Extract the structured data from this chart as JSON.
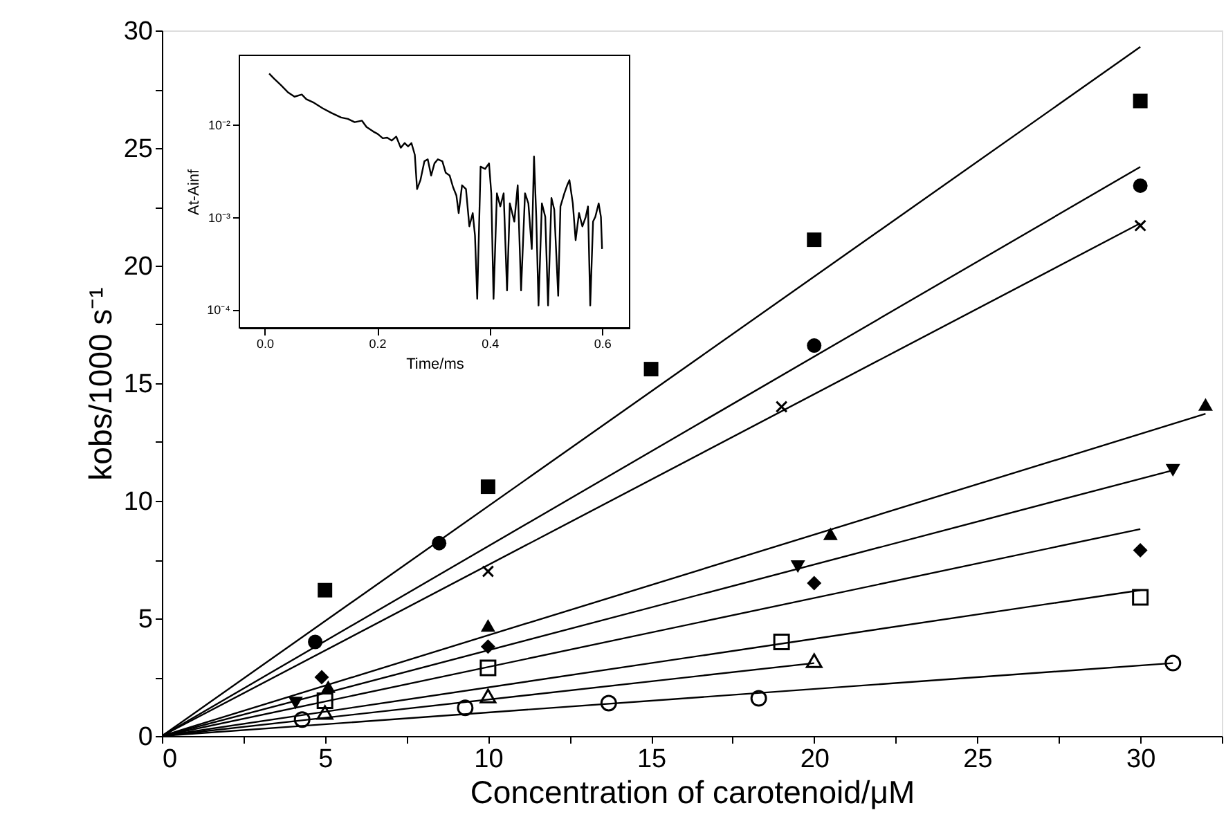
{
  "chart_data": [
    {
      "type": "scatter",
      "xlabel": "Concentration of carotenoid/μM",
      "ylabel": "kobs/1000 s⁻¹",
      "xlim": [
        0,
        32.5
      ],
      "ylim": [
        0,
        30
      ],
      "xticks": [
        0,
        {
          "value": 2.5,
          "label": null
        },
        5,
        {
          "value": 7.5,
          "label": null
        },
        10,
        {
          "value": 12.5,
          "label": null
        },
        15,
        {
          "value": 17.5,
          "label": null
        },
        20,
        {
          "value": 22.5,
          "label": null
        },
        25,
        {
          "value": 27.5,
          "label": null
        },
        30,
        {
          "value": 32.5,
          "label": null
        }
      ],
      "yticks": [
        0,
        {
          "value": 2.5,
          "label": null
        },
        5,
        {
          "value": 7.5,
          "label": null
        },
        10,
        {
          "value": 12.5,
          "label": null
        },
        15,
        {
          "value": 17.5,
          "label": null
        },
        20,
        {
          "value": 22.5,
          "label": null
        },
        25,
        {
          "value": 27.5,
          "label": null
        },
        30
      ],
      "grid": false,
      "series": [
        {
          "type": "scatter",
          "marker": "square",
          "color": "#000000",
          "x": [
            5,
            10,
            15,
            20,
            30
          ],
          "values": [
            6.2,
            10.6,
            15.6,
            21.1,
            27.0
          ]
        },
        {
          "type": "scatter",
          "marker": "circle",
          "color": "#000000",
          "x": [
            4.7,
            8.5,
            20,
            30
          ],
          "values": [
            4.0,
            8.2,
            16.6,
            23.4
          ]
        },
        {
          "type": "scatter",
          "marker": "cross",
          "color": "#000000",
          "x": [
            10,
            19,
            30
          ],
          "values": [
            7.0,
            14.0,
            21.7
          ]
        },
        {
          "type": "scatter",
          "marker": "triangle",
          "color": "#000000",
          "x": [
            5.1,
            10,
            20.5,
            32
          ],
          "values": [
            2.1,
            4.7,
            8.6,
            14.1
          ]
        },
        {
          "type": "scatter",
          "marker": "triangle-down",
          "color": "#000000",
          "x": [
            4.1,
            19.5,
            31
          ],
          "values": [
            1.4,
            7.2,
            11.3
          ]
        },
        {
          "type": "scatter",
          "marker": "diamond",
          "color": "#000000",
          "x": [
            4.9,
            10,
            20,
            30
          ],
          "values": [
            2.5,
            3.8,
            6.5,
            7.9
          ]
        },
        {
          "type": "scatter",
          "marker": "square-open",
          "color": "#000000",
          "x": [
            5,
            10,
            19,
            30
          ],
          "values": [
            1.5,
            2.9,
            4.0,
            5.9
          ]
        },
        {
          "type": "scatter",
          "marker": "triangle-open",
          "color": "#000000",
          "x": [
            5,
            10,
            20
          ],
          "values": [
            1.0,
            1.7,
            3.2
          ]
        },
        {
          "type": "scatter",
          "marker": "circle-open",
          "color": "#000000",
          "x": [
            4.3,
            9.3,
            13.7,
            18.3,
            31
          ],
          "values": [
            0.7,
            1.2,
            1.4,
            1.6,
            3.1
          ]
        },
        {
          "type": "line",
          "color": "#000000",
          "x": [
            0,
            30
          ],
          "values": [
            0,
            29.3
          ]
        },
        {
          "type": "line",
          "color": "#000000",
          "x": [
            0,
            30
          ],
          "values": [
            0,
            24.2
          ]
        },
        {
          "type": "line",
          "color": "#000000",
          "x": [
            0,
            30
          ],
          "values": [
            0,
            21.8
          ]
        },
        {
          "type": "line",
          "color": "#000000",
          "x": [
            0,
            32
          ],
          "values": [
            0,
            13.7
          ]
        },
        {
          "type": "line",
          "color": "#000000",
          "x": [
            0,
            31
          ],
          "values": [
            0,
            11.3
          ]
        },
        {
          "type": "line",
          "color": "#000000",
          "x": [
            0,
            30
          ],
          "values": [
            0,
            8.8
          ]
        },
        {
          "type": "line",
          "color": "#000000",
          "x": [
            0,
            30
          ],
          "values": [
            0,
            6.2
          ]
        },
        {
          "type": "line",
          "color": "#000000",
          "x": [
            0,
            20
          ],
          "values": [
            0,
            3.1
          ]
        },
        {
          "type": "line",
          "color": "#000000",
          "x": [
            0,
            31
          ],
          "values": [
            0,
            3.1
          ]
        }
      ]
    },
    {
      "type": "line",
      "xlabel": "Time/ms",
      "ylabel": "At-Ainf",
      "log": "y",
      "xlim": [
        -0.045,
        0.649
      ],
      "ylim": [
        6.3e-05,
        0.056
      ],
      "xticks": [
        {
          "value": 0,
          "label": "0.0"
        },
        {
          "value": 0.2,
          "label": "0.2"
        },
        {
          "value": 0.4,
          "label": "0.4"
        },
        {
          "value": 0.6,
          "label": "0.6"
        }
      ],
      "yticks": [
        {
          "value": 0.01,
          "label": "10⁻²"
        },
        {
          "value": 0.001,
          "label": "10⁻³"
        },
        {
          "value": 0.0001,
          "label": "10⁻⁴"
        }
      ],
      "grid": false,
      "series": [
        {
          "color": "#000000",
          "x": [
            0.008,
            0.016,
            0.029,
            0.041,
            0.053,
            0.066,
            0.074,
            0.086,
            0.103,
            0.119,
            0.136,
            0.148,
            0.16,
            0.173,
            0.181,
            0.193,
            0.201,
            0.21,
            0.218,
            0.226,
            0.234,
            0.242,
            0.249,
            0.255,
            0.261,
            0.267,
            0.271,
            0.277,
            0.284,
            0.29,
            0.296,
            0.302,
            0.308,
            0.316,
            0.322,
            0.329,
            0.335,
            0.341,
            0.345,
            0.351,
            0.358,
            0.364,
            0.37,
            0.374,
            0.378,
            0.384,
            0.392,
            0.399,
            0.403,
            0.407,
            0.413,
            0.419,
            0.425,
            0.431,
            0.436,
            0.444,
            0.45,
            0.456,
            0.463,
            0.469,
            0.475,
            0.479,
            0.483,
            0.487,
            0.493,
            0.499,
            0.504,
            0.51,
            0.515,
            0.522,
            0.526,
            0.533,
            0.538,
            0.542,
            0.548,
            0.553,
            0.559,
            0.565,
            0.571,
            0.575,
            0.579,
            0.584,
            0.588,
            0.594,
            0.598,
            0.6
          ],
          "values": [
            0.0355,
            0.0316,
            0.0266,
            0.0224,
            0.02,
            0.0211,
            0.0188,
            0.0174,
            0.015,
            0.0133,
            0.0119,
            0.0115,
            0.0106,
            0.011,
            0.0094,
            0.0084,
            0.0079,
            0.0071,
            0.0072,
            0.0067,
            0.0074,
            0.0056,
            0.0063,
            0.0058,
            0.0063,
            0.0047,
            0.002,
            0.0025,
            0.004,
            0.0042,
            0.0028,
            0.0038,
            0.0042,
            0.004,
            0.003,
            0.0028,
            0.0021,
            0.0017,
            0.0011,
            0.0022,
            0.002,
            0.00079,
            0.0011,
            0.00063,
            0.00013,
            0.0035,
            0.0033,
            0.0038,
            0.0018,
            0.00013,
            0.0018,
            0.0013,
            0.0018,
            0.00016,
            0.0014,
            0.00089,
            0.0022,
            0.00016,
            0.0018,
            0.0014,
            0.00045,
            0.0045,
            0.001,
            0.00011,
            0.0014,
            0.001,
            0.00011,
            0.0016,
            0.0012,
            0.00014,
            0.0013,
            0.0018,
            0.0022,
            0.0025,
            0.0014,
            0.00056,
            0.0011,
            0.00079,
            0.001,
            0.0013,
            0.00011,
            0.00089,
            0.001,
            0.0014,
            0.001,
            0.00045
          ]
        }
      ]
    }
  ]
}
